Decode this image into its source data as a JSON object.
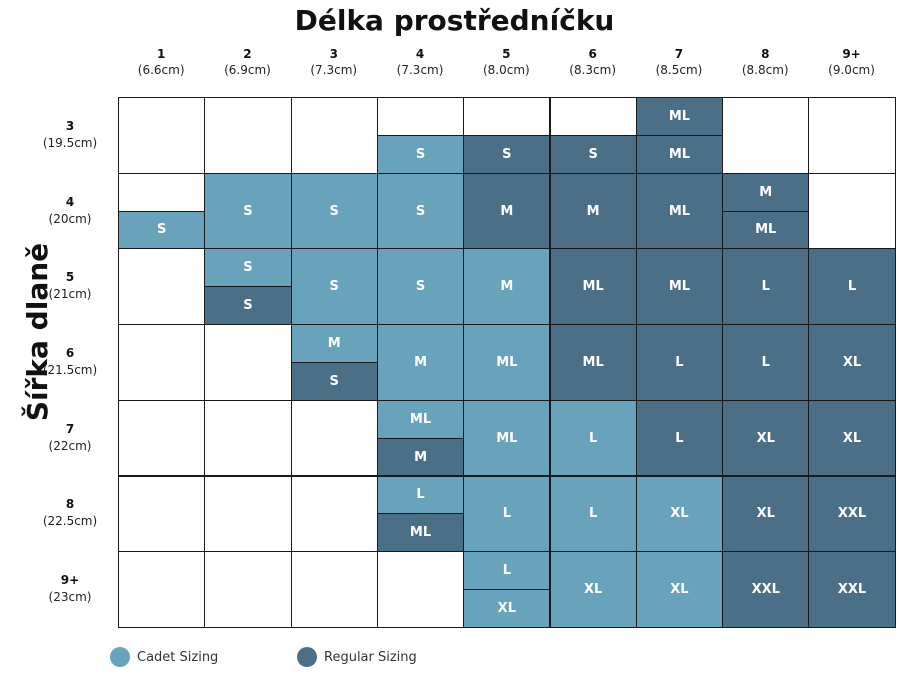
{
  "colors": {
    "cadet": "#69a3bb",
    "regular": "#4c6f88"
  },
  "chart_data": {
    "type": "table",
    "title": "Délka prostředníčku",
    "xlabel": "Délka prostředníčku",
    "ylabel": "Šířka dlaně",
    "columns": [
      {
        "label": "1",
        "cm": "(6.6cm)"
      },
      {
        "label": "2",
        "cm": "(6.9cm)"
      },
      {
        "label": "3",
        "cm": "(7.3cm)"
      },
      {
        "label": "4",
        "cm": "(7.3cm)"
      },
      {
        "label": "5",
        "cm": "(8.0cm)"
      },
      {
        "label": "6",
        "cm": "(8.3cm)"
      },
      {
        "label": "7",
        "cm": "(8.5cm)"
      },
      {
        "label": "8",
        "cm": "(8.8cm)"
      },
      {
        "label": "9+",
        "cm": "(9.0cm)"
      }
    ],
    "rows": [
      {
        "label": "3",
        "cm": "(19.5cm)"
      },
      {
        "label": "4",
        "cm": "(20cm)"
      },
      {
        "label": "5",
        "cm": "(21cm)"
      },
      {
        "label": "6",
        "cm": "(21.5cm)"
      },
      {
        "label": "7",
        "cm": "(22cm)"
      },
      {
        "label": "8",
        "cm": "(22.5cm)"
      },
      {
        "label": "9+",
        "cm": "(23cm)"
      }
    ],
    "legend": [
      {
        "key": "cadet",
        "label": "Cadet Sizing"
      },
      {
        "key": "regular",
        "label": "Regular Sizing"
      }
    ],
    "cells": [
      [
        [],
        [],
        [],
        [
          null,
          {
            "size": "S",
            "type": "cadet"
          }
        ],
        [
          null,
          {
            "size": "S",
            "type": "regular"
          }
        ],
        [
          null,
          {
            "size": "S",
            "type": "regular"
          }
        ],
        [
          {
            "size": "ML",
            "type": "regular"
          },
          {
            "size": "ML",
            "type": "regular"
          }
        ],
        [],
        []
      ],
      [
        [
          null,
          {
            "size": "S",
            "type": "cadet"
          }
        ],
        [
          {
            "size": "S",
            "type": "cadet"
          }
        ],
        [
          {
            "size": "S",
            "type": "cadet"
          }
        ],
        [
          {
            "size": "S",
            "type": "cadet"
          }
        ],
        [
          {
            "size": "M",
            "type": "regular"
          }
        ],
        [
          {
            "size": "M",
            "type": "regular"
          }
        ],
        [
          {
            "size": "ML",
            "type": "regular"
          }
        ],
        [
          {
            "size": "M",
            "type": "regular"
          },
          {
            "size": "ML",
            "type": "regular"
          }
        ],
        []
      ],
      [
        [],
        [
          {
            "size": "S",
            "type": "cadet"
          },
          {
            "size": "S",
            "type": "regular"
          }
        ],
        [
          {
            "size": "S",
            "type": "cadet"
          }
        ],
        [
          {
            "size": "S",
            "type": "cadet"
          }
        ],
        [
          {
            "size": "M",
            "type": "cadet"
          }
        ],
        [
          {
            "size": "ML",
            "type": "regular"
          }
        ],
        [
          {
            "size": "ML",
            "type": "regular"
          }
        ],
        [
          {
            "size": "L",
            "type": "regular"
          }
        ],
        [
          {
            "size": "L",
            "type": "regular"
          }
        ]
      ],
      [
        [],
        [],
        [
          {
            "size": "M",
            "type": "cadet"
          },
          {
            "size": "S",
            "type": "regular"
          }
        ],
        [
          {
            "size": "M",
            "type": "cadet"
          }
        ],
        [
          {
            "size": "ML",
            "type": "cadet"
          }
        ],
        [
          {
            "size": "ML",
            "type": "regular"
          }
        ],
        [
          {
            "size": "L",
            "type": "regular"
          }
        ],
        [
          {
            "size": "L",
            "type": "regular"
          }
        ],
        [
          {
            "size": "XL",
            "type": "regular"
          }
        ]
      ],
      [
        [],
        [],
        [],
        [
          {
            "size": "ML",
            "type": "cadet"
          },
          {
            "size": "M",
            "type": "regular"
          }
        ],
        [
          {
            "size": "ML",
            "type": "cadet"
          }
        ],
        [
          {
            "size": "L",
            "type": "cadet"
          }
        ],
        [
          {
            "size": "L",
            "type": "regular"
          }
        ],
        [
          {
            "size": "XL",
            "type": "regular"
          }
        ],
        [
          {
            "size": "XL",
            "type": "regular"
          }
        ]
      ],
      [
        [],
        [],
        [],
        [
          {
            "size": "L",
            "type": "cadet"
          },
          {
            "size": "ML",
            "type": "regular"
          }
        ],
        [
          {
            "size": "L",
            "type": "cadet"
          }
        ],
        [
          {
            "size": "L",
            "type": "cadet"
          }
        ],
        [
          {
            "size": "XL",
            "type": "cadet"
          }
        ],
        [
          {
            "size": "XL",
            "type": "regular"
          }
        ],
        [
          {
            "size": "XXL",
            "type": "regular"
          }
        ]
      ],
      [
        [],
        [],
        [],
        [],
        [
          {
            "size": "L",
            "type": "cadet"
          },
          {
            "size": "XL",
            "type": "cadet"
          }
        ],
        [
          {
            "size": "XL",
            "type": "cadet"
          }
        ],
        [
          {
            "size": "XL",
            "type": "cadet"
          }
        ],
        [
          {
            "size": "XXL",
            "type": "regular"
          }
        ],
        [
          {
            "size": "XXL",
            "type": "regular"
          }
        ]
      ]
    ]
  }
}
